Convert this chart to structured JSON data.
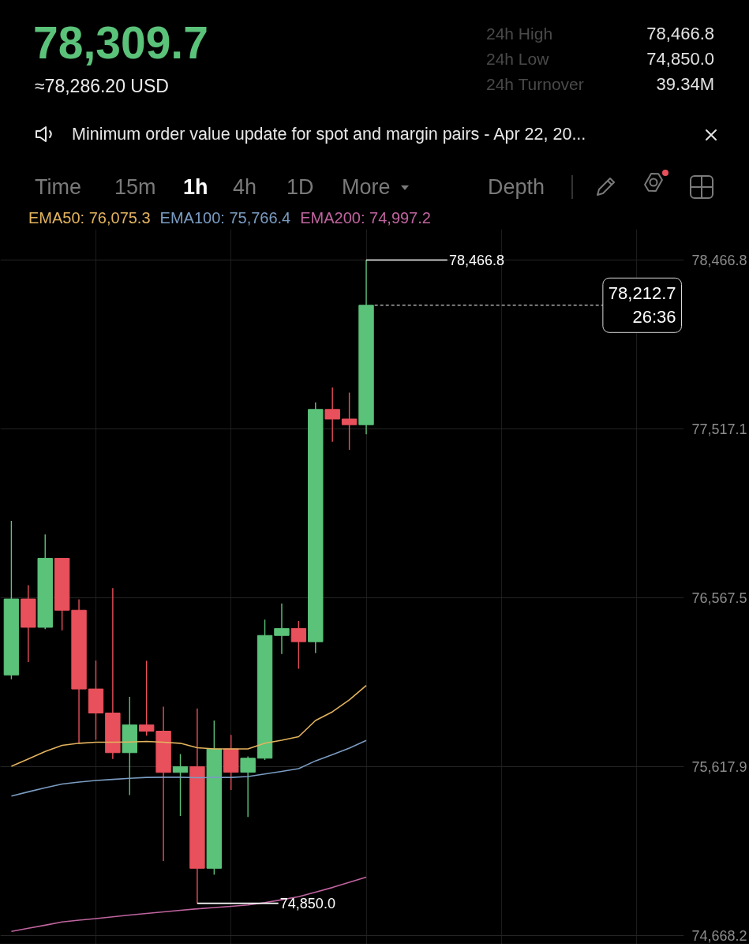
{
  "chart_data": {
    "type": "candlestick",
    "title": "78,309.7",
    "subtitle": "≈78,286.20 USD",
    "categories": [
      null,
      null,
      null,
      null,
      null,
      null,
      null,
      null,
      null,
      null,
      null,
      null,
      null,
      null,
      null,
      null,
      null,
      null,
      null,
      null,
      null,
      null
    ],
    "ohlc": [
      [
        76134,
        77001,
        76110,
        76561
      ],
      [
        76561,
        76639,
        76206,
        76402
      ],
      [
        76402,
        76924,
        76392,
        76790
      ],
      [
        76790,
        76792,
        76385,
        76498
      ],
      [
        76498,
        76559,
        75754,
        76055
      ],
      [
        76055,
        76215,
        75769,
        75920
      ],
      [
        75920,
        76622,
        75662,
        75697
      ],
      [
        75697,
        76011,
        75459,
        75853
      ],
      [
        75853,
        76214,
        75792,
        75818
      ],
      [
        75818,
        75956,
        75088,
        75586
      ],
      [
        75586,
        75689,
        75341,
        75618
      ],
      [
        75618,
        75946,
        74850.0,
        75047
      ],
      [
        75047,
        75878,
        75011,
        75718
      ],
      [
        75718,
        75797,
        75488,
        75587
      ],
      [
        75587,
        75676,
        75336,
        75666
      ],
      [
        75666,
        76445,
        75656,
        76356
      ],
      [
        76356,
        76536,
        76252,
        76395
      ],
      [
        76395,
        76437,
        76169,
        76321
      ],
      [
        76321,
        77666,
        76257,
        77627
      ],
      [
        77627,
        77750,
        77445,
        77573
      ],
      [
        77573,
        77721,
        77400,
        77541
      ],
      [
        77541,
        78466.8,
        77487,
        78212.7
      ]
    ],
    "colors": [
      "#5bc27a",
      "#e8505b",
      "#5bc27a",
      "#e8505b",
      "#e8505b",
      "#e8505b",
      "#e8505b",
      "#5bc27a",
      "#e8505b",
      "#e8505b",
      "#5bc27a",
      "#e8505b",
      "#5bc27a",
      "#e8505b",
      "#5bc27a",
      "#5bc27a",
      "#5bc27a",
      "#e8505b",
      "#5bc27a",
      "#e8505b",
      "#e8505b",
      "#5bc27a"
    ],
    "series": [
      {
        "name": "EMA50: 76,075.3",
        "type": "line",
        "color": "#e3b35e",
        "values": [
          75621,
          75662,
          75704,
          75738,
          75750,
          75756,
          75756,
          75757,
          75760,
          75756,
          75750,
          75725,
          75718,
          75718,
          75718,
          75750,
          75767,
          75787,
          75878,
          75927,
          75994,
          76075
        ]
      },
      {
        "name": "EMA100: 75,766.4",
        "type": "line",
        "color": "#7b9cc2",
        "values": [
          75453,
          75477,
          75500,
          75521,
          75532,
          75541,
          75547,
          75553,
          75558,
          75559,
          75559,
          75556,
          75558,
          75558,
          75563,
          75577,
          75592,
          75607,
          75651,
          75686,
          75723,
          75766
        ]
      },
      {
        "name": "EMA200: 74,997.2",
        "type": "line",
        "color": "#c0649f",
        "values": [
          74692,
          74710,
          74727,
          74745,
          74755,
          74764,
          74774,
          74784,
          74793,
          74802,
          74811,
          74819,
          74826,
          74833,
          74841,
          74854,
          74870,
          74887,
          74913,
          74939,
          74968,
          74997
        ]
      }
    ],
    "ylim": [
      74620,
      78640
    ],
    "yticks": [
      {
        "value": 78466.8,
        "label": "78,466.8"
      },
      {
        "value": 77517.1,
        "label": "77,517.1"
      },
      {
        "value": 76567.5,
        "label": "76,567.5"
      },
      {
        "value": 75617.9,
        "label": "75,617.9"
      },
      {
        "value": 74668.2,
        "label": "74,668.2"
      }
    ],
    "tick_labels": "y",
    "grid": true,
    "legend": "top",
    "ref_lines": [
      {
        "axis": "y",
        "value": 78212.7,
        "label": "78,212.7\n26:36",
        "line_style": "dashed",
        "color": "#ffffff"
      }
    ],
    "annotations": [
      "78,466.8",
      "74,850.0",
      "24h High",
      "78,466.8",
      "24h Low",
      "74,850.0",
      "24h Turnover",
      "39.34M",
      "Minimum order value update for spot and margin pairs - Apr 22, 20...",
      "Time",
      "15m",
      "1h",
      "4h",
      "1D",
      "More",
      "Depth"
    ]
  }
}
